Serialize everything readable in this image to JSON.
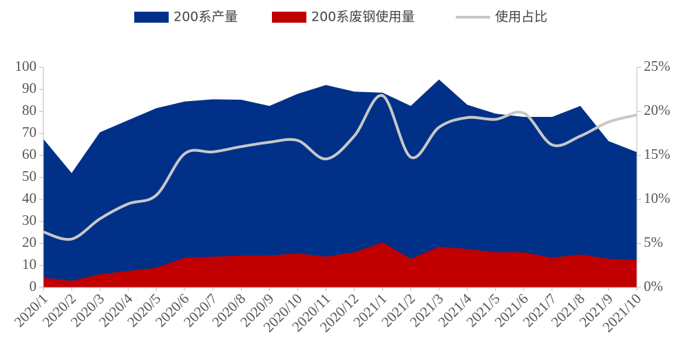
{
  "chart_data": {
    "type": "area",
    "categories": [
      "2020/1",
      "2020/2",
      "2020/3",
      "2020/4",
      "2020/5",
      "2020/6",
      "2020/7",
      "2020/8",
      "2020/9",
      "2020/10",
      "2020/11",
      "2020/12",
      "2021/1",
      "2021/2",
      "2021/3",
      "2021/4",
      "2021/5",
      "2021/6",
      "2021/7",
      "2021/8",
      "2021/9",
      "2021/10"
    ],
    "series": [
      {
        "name": "200系产量",
        "color": "#003087",
        "type": "area",
        "values": [
          67.5,
          52,
          70.5,
          76,
          81.5,
          84.5,
          85.5,
          85.3,
          82.5,
          88,
          92,
          89,
          88.5,
          82.5,
          94.5,
          83,
          79,
          77.5,
          77.5,
          82.5,
          66.5,
          61.5
        ]
      },
      {
        "name": "200系废钢使用量",
        "color": "#c00000",
        "type": "area",
        "values": [
          4.5,
          3,
          6,
          7.5,
          9,
          13.5,
          14,
          14.5,
          14.5,
          15.5,
          14,
          16,
          20.5,
          13,
          18.5,
          17.5,
          16,
          16,
          13.5,
          15,
          13,
          12.5
        ]
      },
      {
        "name": "使用占比",
        "color": "#c8c8c8",
        "type": "line",
        "axis": "y2",
        "values": [
          6.3,
          5.5,
          7.8,
          9.5,
          10.5,
          15.2,
          15.4,
          16.0,
          16.5,
          16.7,
          14.6,
          17.2,
          21.8,
          14.8,
          18.2,
          19.3,
          19.1,
          19.8,
          16.2,
          17.2,
          18.8,
          19.6
        ]
      }
    ],
    "ylim": [
      0,
      100
    ],
    "yticks": [
      0,
      10,
      20,
      30,
      40,
      50,
      60,
      70,
      80,
      90,
      100
    ],
    "y2lim": [
      0,
      25
    ],
    "y2ticks": [
      {
        "value": 0,
        "label": "0%"
      },
      {
        "value": 5,
        "label": "5%"
      },
      {
        "value": 10,
        "label": "10%"
      },
      {
        "value": 15,
        "label": "15%"
      },
      {
        "value": 20,
        "label": "20%"
      },
      {
        "value": 25,
        "label": "25%"
      }
    ],
    "legend": "top"
  }
}
